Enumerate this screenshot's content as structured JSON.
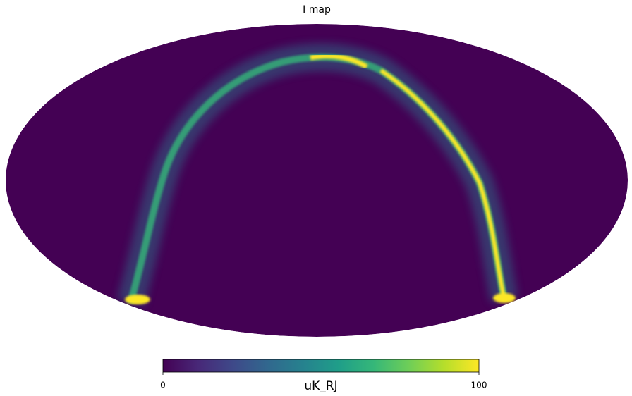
{
  "chart_data": {
    "type": "mollweide",
    "title": "I map",
    "colorbar_label": "uK_RJ",
    "clim": [
      0,
      100
    ],
    "cticks": [
      0,
      100
    ],
    "colormap": [
      "#440154",
      "#482878",
      "#3e4989",
      "#31688e",
      "#26828e",
      "#1f9e89",
      "#35b779",
      "#6ece58",
      "#b5de2b",
      "#fde725"
    ]
  }
}
